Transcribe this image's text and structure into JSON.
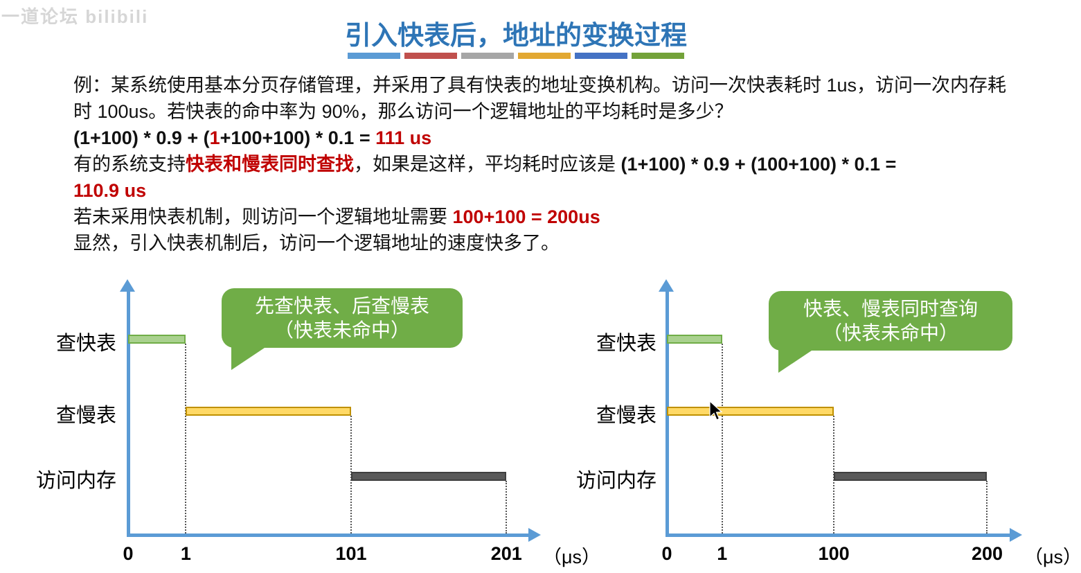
{
  "watermark": {
    "text": "一道论坛 bilibili"
  },
  "title": {
    "text": "引入快表后，地址的变换过程",
    "color": "#2e75b6",
    "underline_colors": [
      "#5b9bd5",
      "#c0504d",
      "#a6a6a6",
      "#e2a832",
      "#4472c4",
      "#73a239"
    ]
  },
  "body": {
    "p1": "例：某系统使用基本分页存储管理，并采用了具有快表的地址变换机构。访问一次快表耗时 1us，访问一次内存耗时 100us。若快表的命中率为 90%，那么访问一个逻辑地址的平均耗时是多少？",
    "p2_black1": "(1+100) * 0.9 + (",
    "p2_red1": "1",
    "p2_black2": "+100+100) * 0.1 = ",
    "p2_red2": "111 us",
    "p3_black1": "有的系统支持",
    "p3_red1": "快表和慢表同时查找",
    "p3_black2": "，如果是这样，平均耗时应该是 ",
    "p3_bold": "(1+100) * 0.9 + (100+100) * 0.1 =",
    "p4_red": "110.9 us",
    "p5_black1": "若未采用快表机制，则访问一个逻辑地址需要 ",
    "p5_red1": "100+100 = 200us",
    "p6": "显然，引入快表机制后，访问一个逻辑地址的速度快多了。"
  },
  "colors": {
    "axis": "#5b9bd5",
    "bubble": "#70ad47",
    "red_text": "#c00000",
    "fast_bar_fill": "#a9d18e",
    "fast_bar_border": "#70ad47",
    "slow_bar_fill": "#ffd966",
    "slow_bar_border": "#bf9000",
    "mem_bar_fill": "#595959",
    "mem_bar_border": "#3f3f3f"
  },
  "chart_data": [
    {
      "type": "timeline",
      "bubble": {
        "line1": "先查快表、后查慢表",
        "line2": "（快表未命中）"
      },
      "row_labels": [
        "查快表",
        "查慢表",
        "访问内存"
      ],
      "x_ticks": [
        {
          "label": "0",
          "value": 0,
          "pos": 0.0
        },
        {
          "label": "1",
          "value": 1,
          "pos": 0.145
        },
        {
          "label": "101",
          "value": 101,
          "pos": 0.56
        },
        {
          "label": "201",
          "value": 201,
          "pos": 0.95
        }
      ],
      "x_unit": "（μs）",
      "segments": [
        {
          "row": 0,
          "label": "查快表",
          "start_us": 0,
          "end_us": 1,
          "start_pos": 0.0,
          "end_pos": 0.145,
          "color_key": "fast"
        },
        {
          "row": 1,
          "label": "查慢表",
          "start_us": 1,
          "end_us": 101,
          "start_pos": 0.145,
          "end_pos": 0.56,
          "color_key": "slow"
        },
        {
          "row": 2,
          "label": "访问内存",
          "start_us": 101,
          "end_us": 201,
          "start_pos": 0.56,
          "end_pos": 0.95,
          "color_key": "mem"
        }
      ]
    },
    {
      "type": "timeline",
      "bubble": {
        "line1": "快表、慢表同时查询",
        "line2": "（快表未命中）"
      },
      "row_labels": [
        "查快表",
        "查慢表",
        "访问内存"
      ],
      "x_ticks": [
        {
          "label": "0",
          "value": 0,
          "pos": 0.0
        },
        {
          "label": "1",
          "value": 1,
          "pos": 0.162
        },
        {
          "label": "100",
          "value": 100,
          "pos": 0.49
        },
        {
          "label": "200",
          "value": 200,
          "pos": 0.94
        }
      ],
      "x_unit": "（μs）",
      "segments": [
        {
          "row": 0,
          "label": "查快表",
          "start_us": 0,
          "end_us": 1,
          "start_pos": 0.0,
          "end_pos": 0.162,
          "color_key": "fast"
        },
        {
          "row": 1,
          "label": "查慢表",
          "start_us": 0,
          "end_us": 100,
          "start_pos": 0.0,
          "end_pos": 0.49,
          "color_key": "slow"
        },
        {
          "row": 2,
          "label": "访问内存",
          "start_us": 100,
          "end_us": 200,
          "start_pos": 0.49,
          "end_pos": 0.94,
          "color_key": "mem"
        }
      ]
    }
  ]
}
